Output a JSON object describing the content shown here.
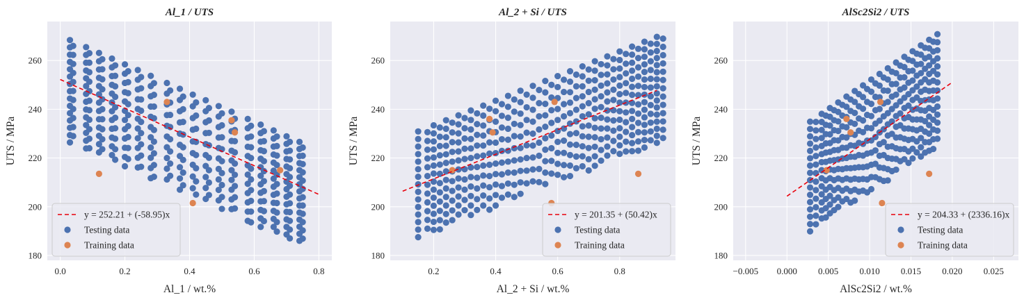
{
  "chart_data": [
    {
      "type": "scatter",
      "title": "Al_1 / UTS",
      "xlabel": "Al_1 / wt.%",
      "ylabel": "UTS / MPa",
      "xlim": [
        -0.04,
        0.84
      ],
      "ylim": [
        178,
        276
      ],
      "xticks": [
        0.0,
        0.2,
        0.4,
        0.6,
        0.8
      ],
      "xtick_labels": [
        "0.0",
        "0.2",
        "0.4",
        "0.6",
        "0.8"
      ],
      "yticks": [
        180,
        200,
        220,
        240,
        260
      ],
      "ytick_labels": [
        "180",
        "200",
        "220",
        "240",
        "260"
      ],
      "fit": {
        "label": "y = 252.21 + (-58.95)x",
        "intercept": 252.21,
        "slope": -58.95,
        "x_range": [
          0.0,
          0.8
        ],
        "color": "#E8000B"
      },
      "legend_position": "lower-left",
      "testing": {
        "name": "Testing data",
        "color": "#4C72B0",
        "trend": {
          "slope": -58.95,
          "intercept": 252.21,
          "upper": 18,
          "lower": -24
        },
        "x": [
          0.03,
          0.04,
          0.08,
          0.09,
          0.12,
          0.13,
          0.16,
          0.17,
          0.2,
          0.21,
          0.24,
          0.25,
          0.28,
          0.29,
          0.33,
          0.34,
          0.37,
          0.38,
          0.41,
          0.42,
          0.45,
          0.46,
          0.49,
          0.5,
          0.53,
          0.54,
          0.58,
          0.59,
          0.62,
          0.63,
          0.66,
          0.67,
          0.7,
          0.71,
          0.74,
          0.75
        ],
        "steps": [
          3.0,
          3.7,
          3.2,
          3.9,
          3.4,
          4.1,
          3.6,
          4.3,
          3.8,
          4.5,
          4.0,
          4.6,
          4.2,
          4.8,
          4.4,
          5.0,
          4.6,
          5.2,
          4.8,
          5.4,
          4.5,
          5.1,
          4.3,
          4.9,
          4.0,
          4.6,
          3.8,
          4.4,
          3.5,
          4.1,
          3.3,
          3.9,
          3.1,
          3.6,
          2.9,
          3.4
        ]
      },
      "training": {
        "name": "Training data",
        "color": "#DD8452",
        "points": [
          [
            0.12,
            213.5
          ],
          [
            0.33,
            243
          ],
          [
            0.41,
            201.5
          ],
          [
            0.53,
            235.5
          ],
          [
            0.54,
            230.5
          ],
          [
            0.68,
            215
          ]
        ]
      }
    },
    {
      "type": "scatter",
      "title": "Al_2 + Si / UTS",
      "xlabel": "Al_2 + Si / wt.%",
      "ylabel": "UTS / MPa",
      "xlim": [
        0.06,
        0.98
      ],
      "ylim": [
        178,
        276
      ],
      "xticks": [
        0.2,
        0.4,
        0.6,
        0.8
      ],
      "xtick_labels": [
        "0.2",
        "0.4",
        "0.6",
        "0.8"
      ],
      "yticks": [
        180,
        200,
        220,
        240,
        260
      ],
      "ytick_labels": [
        "180",
        "200",
        "220",
        "240",
        "260"
      ],
      "fit": {
        "label": "y = 201.35 + (50.42)x",
        "intercept": 201.35,
        "slope": 50.42,
        "x_range": [
          0.1,
          0.92
        ],
        "color": "#E8000B"
      },
      "legend_position": "lower-right",
      "testing": {
        "name": "Testing data",
        "color": "#4C72B0",
        "trend": {
          "slope": 50.42,
          "intercept": 201.35,
          "upper": 22,
          "lower": -22
        },
        "x": [
          0.15,
          0.18,
          0.2,
          0.22,
          0.24,
          0.26,
          0.28,
          0.3,
          0.32,
          0.34,
          0.36,
          0.38,
          0.4,
          0.42,
          0.44,
          0.46,
          0.48,
          0.5,
          0.52,
          0.54,
          0.56,
          0.58,
          0.6,
          0.62,
          0.64,
          0.66,
          0.68,
          0.7,
          0.72,
          0.74,
          0.76,
          0.78,
          0.8,
          0.82,
          0.84,
          0.86,
          0.88,
          0.9,
          0.92,
          0.94
        ],
        "steps": [
          3.1,
          3.6,
          3.3,
          3.8,
          3.5,
          4.0,
          3.7,
          4.2,
          3.9,
          4.4,
          4.1,
          4.6,
          4.3,
          4.8,
          4.5,
          5.0,
          4.7,
          5.2,
          4.9,
          5.4,
          4.7,
          5.2,
          4.5,
          5.0,
          4.3,
          4.8,
          4.1,
          4.6,
          3.9,
          4.4,
          3.7,
          4.2,
          3.5,
          4.0,
          3.3,
          3.8,
          3.1,
          3.6,
          2.9,
          3.4
        ]
      },
      "training": {
        "name": "Training data",
        "color": "#DD8452",
        "points": [
          [
            0.26,
            215
          ],
          [
            0.38,
            236
          ],
          [
            0.39,
            230.5
          ],
          [
            0.58,
            201.5
          ],
          [
            0.59,
            243
          ],
          [
            0.86,
            213.5
          ]
        ]
      }
    },
    {
      "type": "scatter",
      "title": "AlSc2Si2 / UTS",
      "xlabel": "AlSc2Si2 / wt.%",
      "ylabel": "UTS / MPa",
      "xlim": [
        -0.0065,
        0.028
      ],
      "ylim": [
        178,
        276
      ],
      "xticks": [
        -0.005,
        0.0,
        0.005,
        0.01,
        0.015,
        0.02,
        0.025
      ],
      "xtick_labels": [
        "−0.005",
        "0.000",
        "0.005",
        "0.010",
        "0.015",
        "0.020",
        "0.025"
      ],
      "yticks": [
        180,
        200,
        220,
        240,
        260
      ],
      "ytick_labels": [
        "180",
        "200",
        "220",
        "240",
        "260"
      ],
      "fit": {
        "label": "y = 204.33 + (2336.16)x",
        "intercept": 204.33,
        "slope": 2336.16,
        "x_range": [
          0.0,
          0.02
        ],
        "color": "#E8000B"
      },
      "legend_position": "lower-right",
      "testing": {
        "name": "Testing data",
        "color": "#4C72B0",
        "trend": {
          "slope": 2336.16,
          "intercept": 204.33,
          "upper": 24,
          "lower": -22
        },
        "x": [
          0.0028,
          0.0035,
          0.0042,
          0.0047,
          0.0052,
          0.0057,
          0.0062,
          0.0067,
          0.0072,
          0.0077,
          0.0082,
          0.0087,
          0.0092,
          0.0097,
          0.0102,
          0.0107,
          0.0112,
          0.0117,
          0.0122,
          0.0127,
          0.0132,
          0.0137,
          0.0142,
          0.0147,
          0.0152,
          0.0157,
          0.0162,
          0.0167,
          0.0172,
          0.0177,
          0.0182
        ],
        "steps": [
          3.0,
          3.5,
          3.3,
          3.8,
          3.6,
          4.1,
          3.9,
          4.4,
          4.2,
          4.7,
          4.5,
          5.0,
          4.8,
          5.3,
          5.0,
          5.5,
          4.8,
          5.3,
          4.6,
          5.1,
          4.4,
          4.9,
          4.2,
          4.7,
          4.0,
          4.5,
          3.8,
          4.3,
          3.5,
          4.0,
          3.3
        ]
      },
      "training": {
        "name": "Training data",
        "color": "#DD8452",
        "points": [
          [
            0.0048,
            215
          ],
          [
            0.0072,
            236
          ],
          [
            0.0077,
            230.5
          ],
          [
            0.0113,
            243
          ],
          [
            0.0115,
            201.5
          ],
          [
            0.0172,
            213.5
          ]
        ]
      }
    }
  ]
}
